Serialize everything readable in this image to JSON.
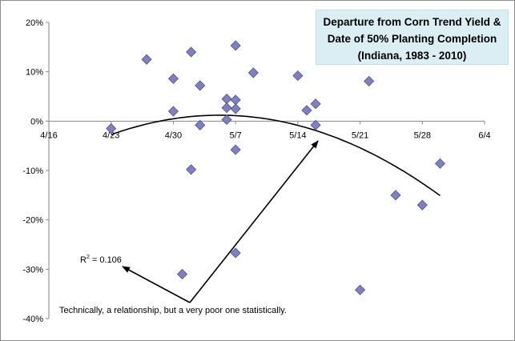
{
  "chart_data": {
    "type": "scatter",
    "title_lines": [
      "Departure from Corn Trend Yield &",
      "Date of 50% Planting Completion",
      "(Indiana, 1983 - 2010)"
    ],
    "x_tick_labels": [
      "4/16",
      "4/23",
      "4/30",
      "5/7",
      "5/14",
      "5/21",
      "5/28",
      "6/4"
    ],
    "x_ticks_day": [
      0,
      7,
      14,
      21,
      28,
      35,
      42,
      49
    ],
    "y_tick_labels": [
      "20%",
      "10%",
      "0%",
      "-10%",
      "-20%",
      "-30%",
      "-40%"
    ],
    "y_ticks": [
      20,
      10,
      0,
      -10,
      -20,
      -30,
      -40
    ],
    "xlim_day": [
      0,
      49
    ],
    "ylim": [
      -40,
      20
    ],
    "marker_color": "#8080c0",
    "marker_stroke": "#4f4f8a",
    "points": [
      {
        "x": "4/23",
        "y": -1.5
      },
      {
        "x": "4/27",
        "y": 12.5
      },
      {
        "x": "4/30",
        "y": 8.6
      },
      {
        "x": "4/30",
        "y": 2.0
      },
      {
        "x": "5/1",
        "y": -31.0
      },
      {
        "x": "5/2",
        "y": 14.0
      },
      {
        "x": "5/2",
        "y": -9.8
      },
      {
        "x": "5/3",
        "y": 7.2
      },
      {
        "x": "5/3",
        "y": -0.8
      },
      {
        "x": "5/6",
        "y": 4.5
      },
      {
        "x": "5/6",
        "y": 2.7
      },
      {
        "x": "5/6",
        "y": 0.3
      },
      {
        "x": "5/7",
        "y": 15.3
      },
      {
        "x": "5/7",
        "y": 4.3
      },
      {
        "x": "5/7",
        "y": 2.5
      },
      {
        "x": "5/7",
        "y": -5.8
      },
      {
        "x": "5/7",
        "y": -26.7
      },
      {
        "x": "5/9",
        "y": 9.8
      },
      {
        "x": "5/14",
        "y": 9.2
      },
      {
        "x": "5/15",
        "y": 2.2
      },
      {
        "x": "5/16",
        "y": 3.5
      },
      {
        "x": "5/16",
        "y": -0.8
      },
      {
        "x": "5/21",
        "y": -34.2
      },
      {
        "x": "5/22",
        "y": 8.1
      },
      {
        "x": "5/25",
        "y": -15.0
      },
      {
        "x": "5/28",
        "y": -17.0
      },
      {
        "x": "5/30",
        "y": -8.6
      }
    ],
    "trendline": {
      "type": "quadratic",
      "from": "4/23",
      "to": "5/30",
      "label": "R² = 0.106",
      "label_parts": {
        "base": "R",
        "sup": "2",
        "rest": " = 0.106"
      }
    },
    "annotation": "Technically, a relationship, but a very poor one statistically.",
    "grid": false,
    "legend": "none"
  }
}
